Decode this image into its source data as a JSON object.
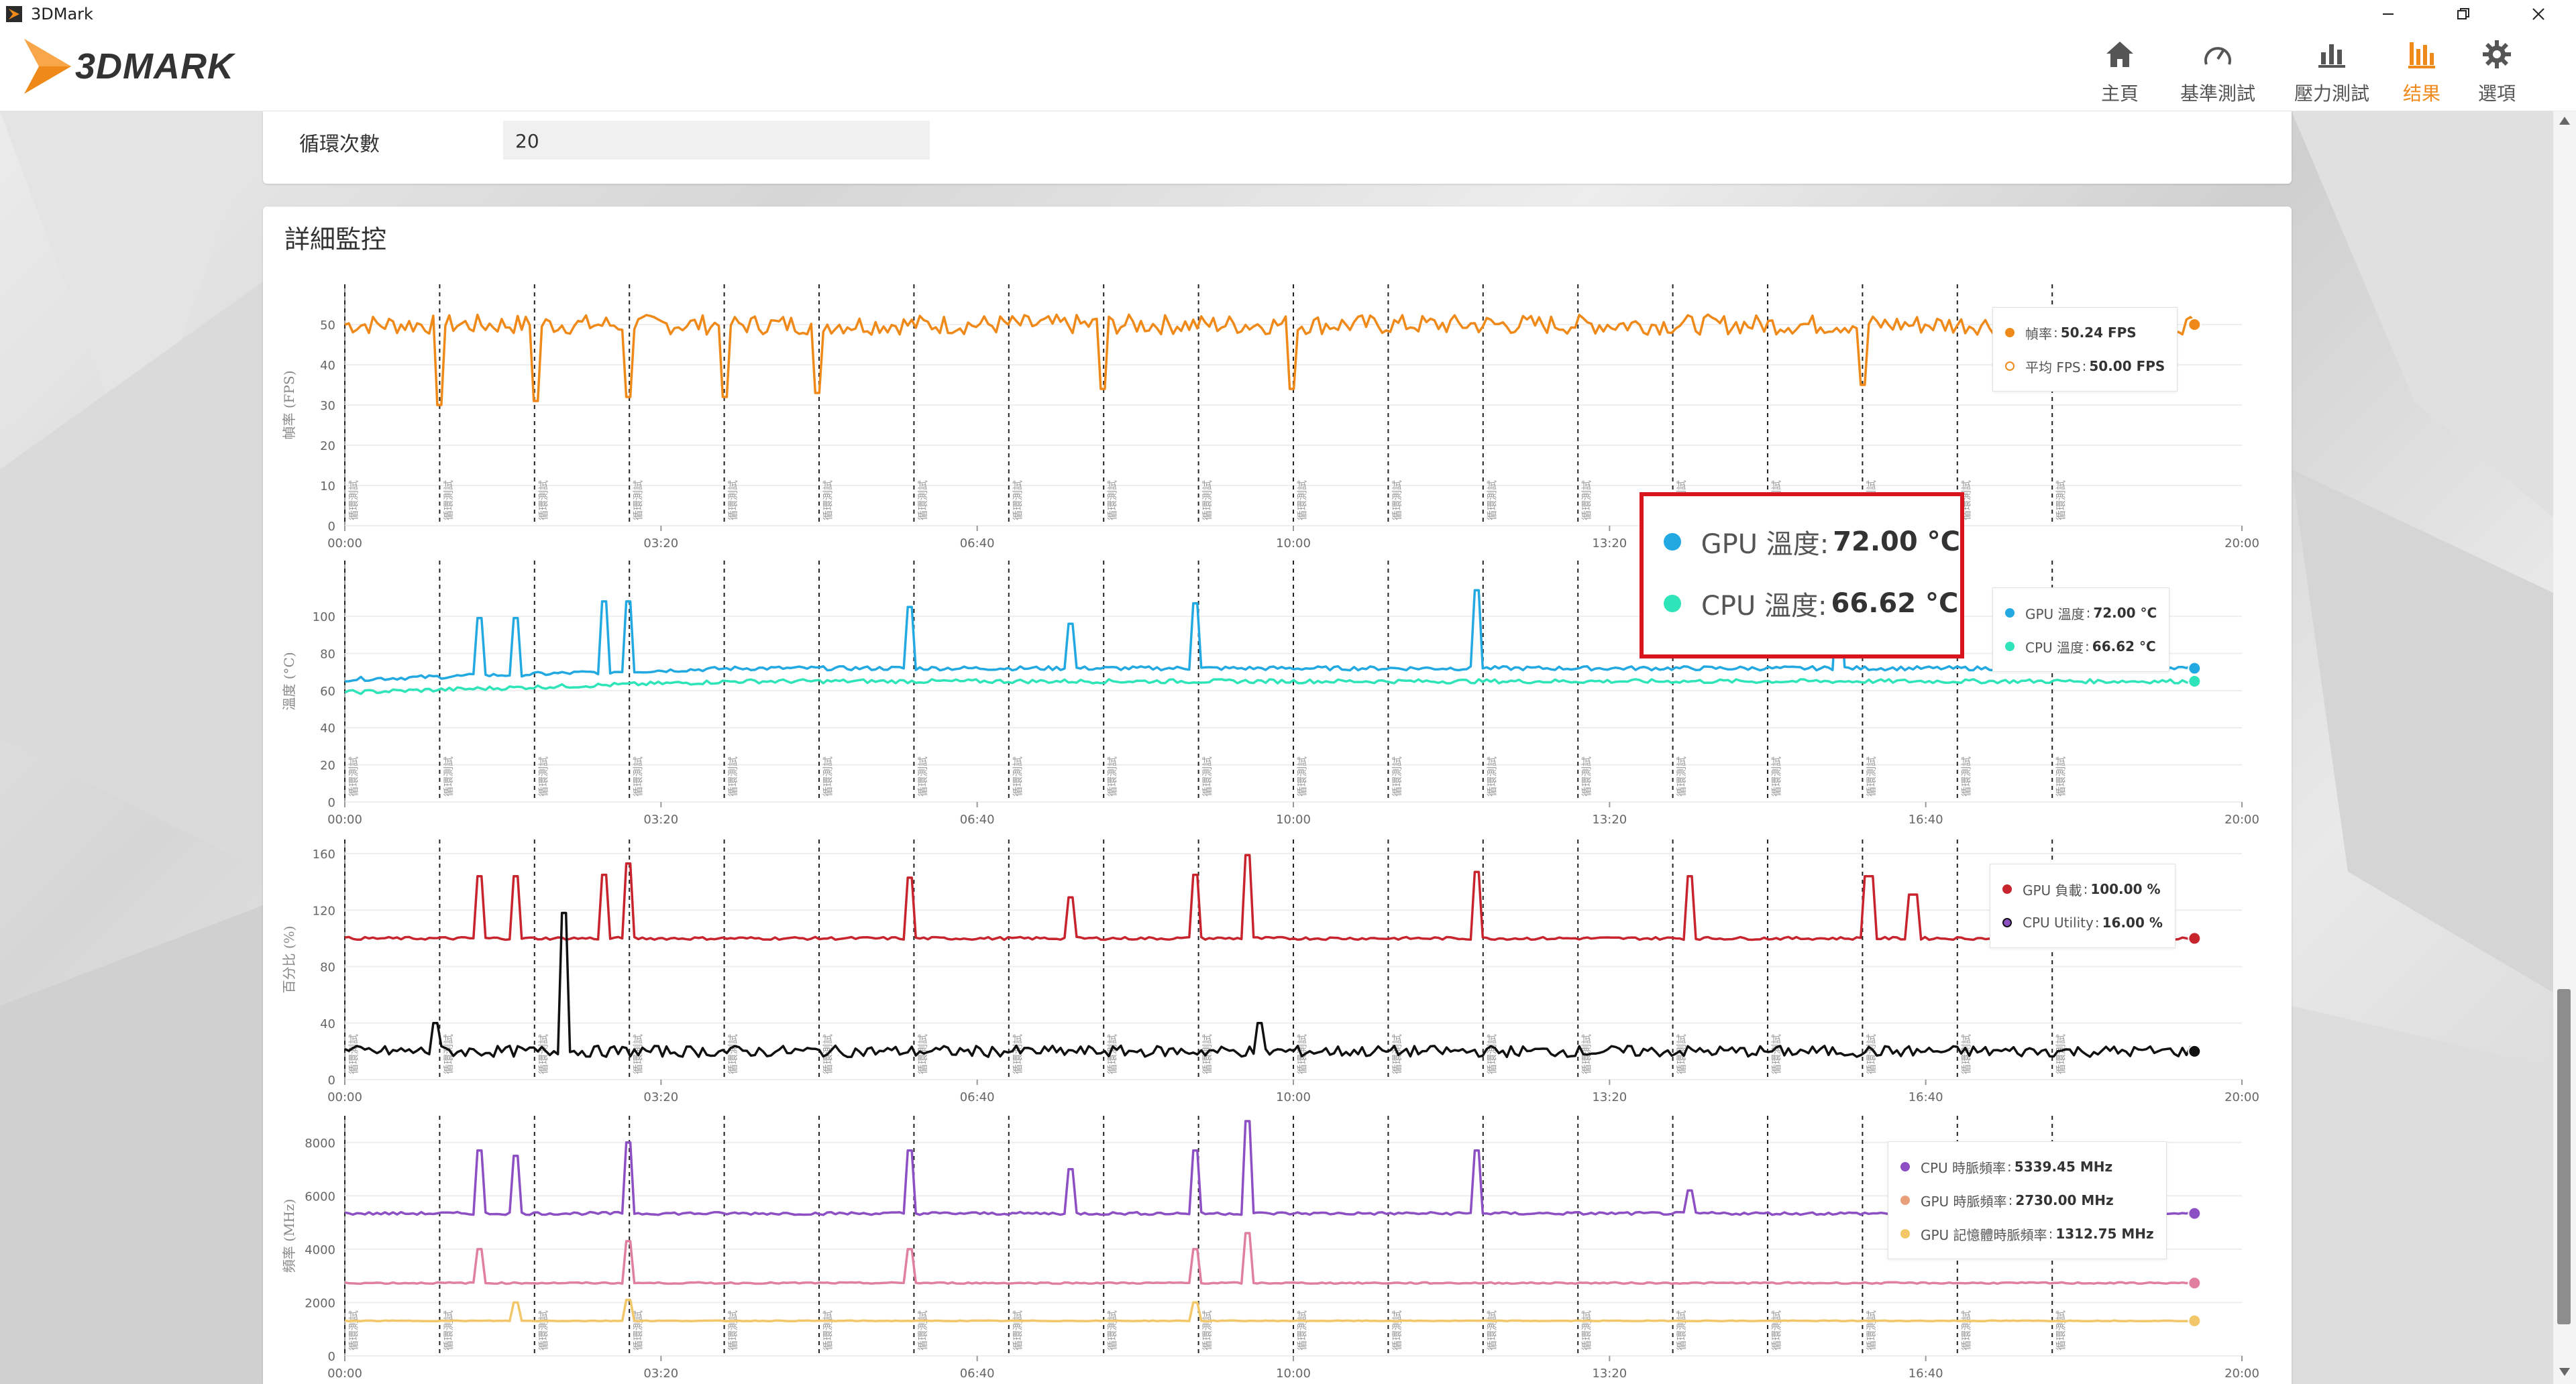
{
  "window": {
    "title": "3DMark",
    "icon": "3dmark-app-icon"
  },
  "window_controls": {
    "minimize": "minimize-icon",
    "maximize": "restore-icon",
    "close": "close-icon"
  },
  "header": {
    "logo_text": "3DMARK",
    "nav": [
      {
        "label": "主頁",
        "icon": "home-icon",
        "active": false
      },
      {
        "label": "基準測試",
        "icon": "gauge-icon",
        "active": false
      },
      {
        "label": "壓力測試",
        "icon": "bar-chart-icon",
        "active": false
      },
      {
        "label": "结果",
        "icon": "results-icon",
        "active": true
      },
      {
        "label": "選項",
        "icon": "gear-icon",
        "active": false
      }
    ]
  },
  "settings": {
    "loop_label": "循環次數",
    "loop_value": "20"
  },
  "monitoring": {
    "title": "詳細監控"
  },
  "colors": {
    "accent": "#ef8a1a",
    "fps": "#ef8a1a",
    "gpu_temp": "#23a9e1",
    "cpu_temp": "#2ee4b8",
    "gpu_load": "#c8242e",
    "cpu_utility": "#111111",
    "cpu_clock": "#8c4fc4",
    "gpu_clock": "#e17fa0",
    "gpu_mem_clock": "#f1c76a",
    "highlight_box": "#d8141e"
  },
  "callout": {
    "rows": [
      {
        "label": "GPU 溫度:",
        "value": "72.00 °C",
        "color": "#23a9e1"
      },
      {
        "label": "CPU 溫度:",
        "value": "66.62 °C",
        "color": "#2ee4b8"
      }
    ]
  },
  "chart_data": [
    {
      "type": "line",
      "ylabel": "幀率 (FPS)",
      "ylim": [
        0,
        60
      ],
      "yticks": [
        0,
        10,
        20,
        30,
        40,
        50
      ],
      "xlim_seconds": [
        0,
        1200
      ],
      "xtick_labels": [
        "00:00",
        "03:20",
        "06:40",
        "10:00",
        "13:20",
        "16:40",
        "20:00"
      ],
      "loop_marker_label": "循環測試",
      "loop_markers_seconds": [
        0,
        60,
        120,
        180,
        240,
        300,
        360,
        420,
        480,
        540,
        600,
        660,
        720,
        780,
        840,
        900,
        960,
        1020,
        1080
      ],
      "series": [
        {
          "name": "幀率",
          "value": "50.24 FPS",
          "color": "#ef8a1a",
          "baseline": 50,
          "noise": 2.5,
          "dips": [
            {
              "t": 60,
              "v": 30
            },
            {
              "t": 120,
              "v": 31
            },
            {
              "t": 180,
              "v": 32
            },
            {
              "t": 240,
              "v": 32
            },
            {
              "t": 300,
              "v": 33
            },
            {
              "t": 480,
              "v": 34
            },
            {
              "t": 600,
              "v": 34
            },
            {
              "t": 960,
              "v": 35
            }
          ]
        },
        {
          "name": "平均 FPS",
          "value": "50.00 FPS",
          "color": "#ef8a1a",
          "hollow": true
        }
      ],
      "legend_position": "top-right"
    },
    {
      "type": "line",
      "ylabel": "溫度 (°C)",
      "ylim": [
        0,
        130
      ],
      "yticks": [
        0,
        20,
        40,
        60,
        80,
        100
      ],
      "xlim_seconds": [
        0,
        1200
      ],
      "xtick_labels": [
        "00:00",
        "03:20",
        "06:40",
        "10:00",
        "13:20",
        "16:40",
        "20:00"
      ],
      "loop_marker_label": "循環測試",
      "series": [
        {
          "name": "GPU 溫度",
          "value": "72.00 °C",
          "color": "#23a9e1",
          "start": 66,
          "end": 72,
          "spikes": [
            {
              "t": 86,
              "v": 99
            },
            {
              "t": 107,
              "v": 99
            },
            {
              "t": 165,
              "v": 108
            },
            {
              "t": 180,
              "v": 108
            },
            {
              "t": 357,
              "v": 105
            },
            {
              "t": 460,
              "v": 96
            },
            {
              "t": 538,
              "v": 107
            },
            {
              "t": 716,
              "v": 114
            },
            {
              "t": 946,
              "v": 107
            }
          ]
        },
        {
          "name": "CPU 溫度",
          "value": "66.62 °C",
          "color": "#2ee4b8",
          "start": 59,
          "end": 65
        }
      ],
      "legend_position": "top-right"
    },
    {
      "type": "line",
      "ylabel": "百分比 (%)",
      "ylim": [
        0,
        170
      ],
      "yticks": [
        0,
        40,
        80,
        120,
        160
      ],
      "xlim_seconds": [
        0,
        1200
      ],
      "xtick_labels": [
        "00:00",
        "03:20",
        "06:40",
        "10:00",
        "13:20",
        "16:40",
        "20:00"
      ],
      "loop_marker_label": "循環測試",
      "series": [
        {
          "name": "GPU 負載",
          "value": "100.00 %",
          "color": "#c8242e",
          "baseline": 100,
          "spikes": [
            {
              "t": 86,
              "v": 144
            },
            {
              "t": 107,
              "v": 144
            },
            {
              "t": 165,
              "v": 145
            },
            {
              "t": 180,
              "v": 153
            },
            {
              "t": 357,
              "v": 143
            },
            {
              "t": 460,
              "v": 129
            },
            {
              "t": 538,
              "v": 145
            },
            {
              "t": 570,
              "v": 159
            },
            {
              "t": 716,
              "v": 147
            },
            {
              "t": 850,
              "v": 144
            },
            {
              "t": 964,
              "v": 144
            },
            {
              "t": 992,
              "v": 131
            },
            {
              "t": 1090,
              "v": 146
            }
          ]
        },
        {
          "name": "CPU Utility",
          "value": "16.00 %",
          "color": "#111111",
          "baseline": 20,
          "noise": 4,
          "spikes": [
            {
              "t": 138,
              "v": 118
            },
            {
              "t": 58,
              "v": 40
            },
            {
              "t": 578,
              "v": 40
            }
          ]
        }
      ],
      "legend_position": "top-right"
    },
    {
      "type": "line",
      "ylabel": "頻率 (MHz)",
      "ylim": [
        0,
        9000
      ],
      "yticks": [
        0,
        2000,
        4000,
        6000,
        8000
      ],
      "xlim_seconds": [
        0,
        1200
      ],
      "xtick_labels": [
        "00:00",
        "03:20",
        "06:40",
        "10:00",
        "13:20",
        "16:40",
        "20:00"
      ],
      "loop_marker_label": "循環測試",
      "series": [
        {
          "name": "CPU 時脈頻率",
          "value": "5339.45 MHz",
          "color": "#8c4fc4",
          "baseline": 5339,
          "spikes": [
            {
              "t": 86,
              "v": 7700
            },
            {
              "t": 107,
              "v": 7500
            },
            {
              "t": 180,
              "v": 8000
            },
            {
              "t": 357,
              "v": 7700
            },
            {
              "t": 460,
              "v": 7000
            },
            {
              "t": 538,
              "v": 7700
            },
            {
              "t": 570,
              "v": 8800
            },
            {
              "t": 716,
              "v": 7700
            },
            {
              "t": 850,
              "v": 6200
            }
          ]
        },
        {
          "name": "GPU 時脈頻率",
          "value": "2730.00 MHz",
          "color": "#e17fa0",
          "baseline": 2730,
          "spikes": [
            {
              "t": 86,
              "v": 4000
            },
            {
              "t": 180,
              "v": 4300
            },
            {
              "t": 357,
              "v": 4000
            },
            {
              "t": 538,
              "v": 4000
            },
            {
              "t": 570,
              "v": 4600
            }
          ]
        },
        {
          "name": "GPU 記憶體時脈頻率",
          "value": "1312.75 MHz",
          "color": "#f1c76a",
          "baseline": 1312,
          "spikes": [
            {
              "t": 107,
              "v": 2000
            },
            {
              "t": 180,
              "v": 2100
            },
            {
              "t": 538,
              "v": 2000
            }
          ]
        }
      ],
      "legend_position": "top-right"
    }
  ]
}
